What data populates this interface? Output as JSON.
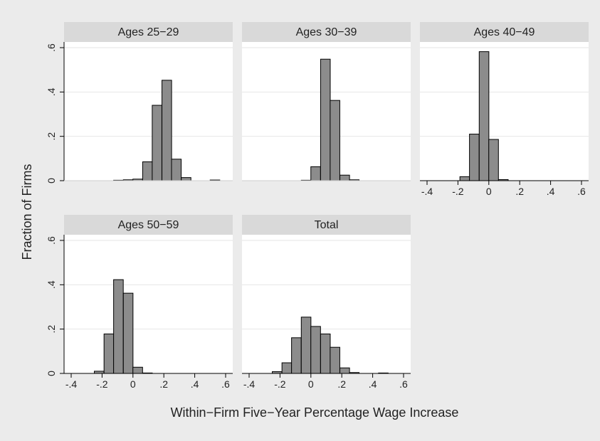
{
  "figure": {
    "ylabel": "Fraction of Firms",
    "xlabel": "Within−Firm Five−Year Percentage Wage Increase"
  },
  "chart_data": {
    "type": "bar",
    "layout": "small-multiples histogram grid, 3 panels top row, 2 panels bottom row",
    "bar_width": 0.0625,
    "xlim": [
      -0.4,
      0.6
    ],
    "ylim": [
      0,
      0.6
    ],
    "x_ticks": [
      -0.4,
      -0.2,
      0,
      0.2,
      0.4,
      0.6
    ],
    "x_tick_labels": [
      "-.4",
      "-.2",
      "0",
      ".2",
      ".4",
      ".6"
    ],
    "y_ticks": [
      0,
      0.2,
      0.4,
      0.6
    ],
    "y_tick_labels": [
      "0",
      ".2",
      ".4",
      ".6"
    ],
    "grid": true,
    "colors": {
      "bar_fill": "#8c8c8c",
      "bar_stroke": "#000000",
      "panel_header": "#d9d9d9",
      "plot_background": "#ffffff",
      "figure_background": "#ebebeb",
      "grid": "#e6e6e6"
    },
    "panels": [
      {
        "title": "Ages 25−29",
        "bins": [
          {
            "x": -0.094,
            "y": 0.002
          },
          {
            "x": -0.031,
            "y": 0.004
          },
          {
            "x": 0.031,
            "y": 0.007
          },
          {
            "x": 0.094,
            "y": 0.085
          },
          {
            "x": 0.156,
            "y": 0.34
          },
          {
            "x": 0.219,
            "y": 0.453
          },
          {
            "x": 0.281,
            "y": 0.097
          },
          {
            "x": 0.344,
            "y": 0.014
          },
          {
            "x": 0.531,
            "y": 0.003
          }
        ]
      },
      {
        "title": "Ages 30−39",
        "bins": [
          {
            "x": -0.031,
            "y": 0.002
          },
          {
            "x": 0.031,
            "y": 0.063
          },
          {
            "x": 0.094,
            "y": 0.548
          },
          {
            "x": 0.156,
            "y": 0.362
          },
          {
            "x": 0.219,
            "y": 0.025
          },
          {
            "x": 0.281,
            "y": 0.004
          }
        ]
      },
      {
        "title": "Ages 40−49",
        "bins": [
          {
            "x": -0.156,
            "y": 0.018
          },
          {
            "x": -0.094,
            "y": 0.21
          },
          {
            "x": -0.031,
            "y": 0.582
          },
          {
            "x": 0.031,
            "y": 0.186
          },
          {
            "x": 0.094,
            "y": 0.005
          }
        ]
      },
      {
        "title": "Ages 50−59",
        "bins": [
          {
            "x": -0.219,
            "y": 0.01
          },
          {
            "x": -0.156,
            "y": 0.178
          },
          {
            "x": -0.094,
            "y": 0.423
          },
          {
            "x": -0.031,
            "y": 0.362
          },
          {
            "x": 0.031,
            "y": 0.028
          },
          {
            "x": 0.094,
            "y": 0.002
          }
        ]
      },
      {
        "title": "Total",
        "bins": [
          {
            "x": -0.219,
            "y": 0.008
          },
          {
            "x": -0.156,
            "y": 0.048
          },
          {
            "x": -0.094,
            "y": 0.161
          },
          {
            "x": -0.031,
            "y": 0.254
          },
          {
            "x": 0.031,
            "y": 0.212
          },
          {
            "x": 0.094,
            "y": 0.178
          },
          {
            "x": 0.156,
            "y": 0.118
          },
          {
            "x": 0.219,
            "y": 0.025
          },
          {
            "x": 0.281,
            "y": 0.004
          },
          {
            "x": 0.469,
            "y": 0.002
          }
        ]
      }
    ]
  }
}
